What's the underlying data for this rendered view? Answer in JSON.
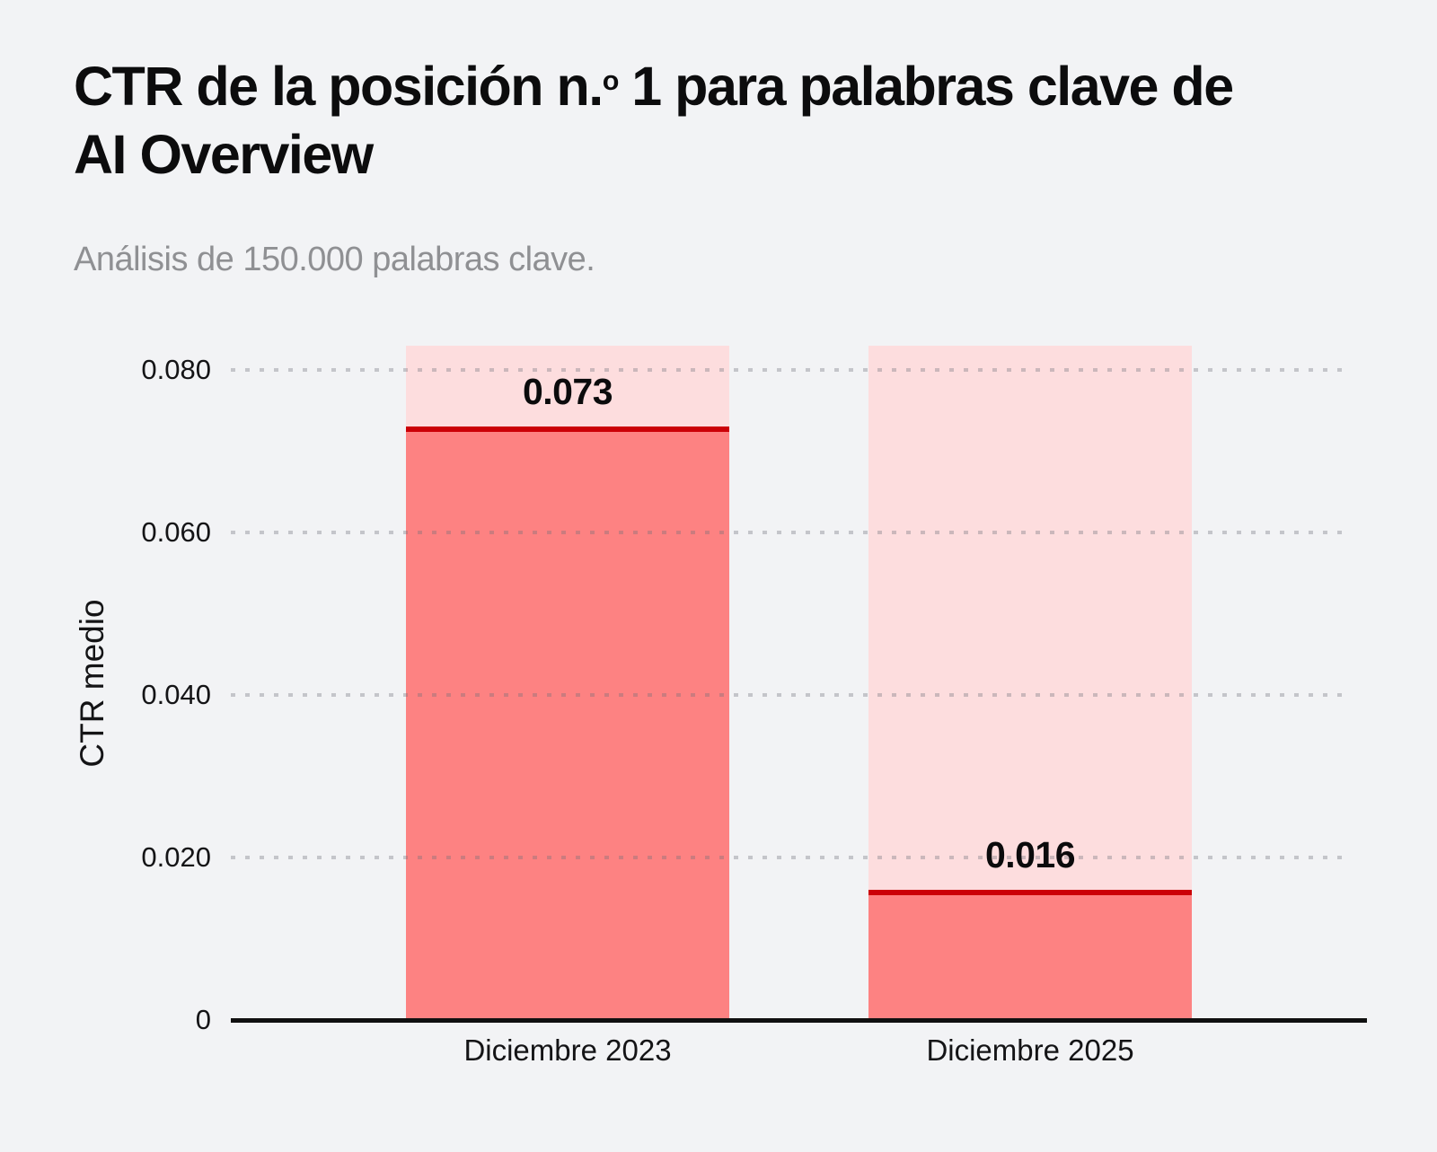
{
  "title": {
    "prefix": "CTR de la posición n.",
    "superscript": "o",
    "suffix": " 1 para palabras clave de AI Overview"
  },
  "subtitle": "Análisis de 150.000 palabras clave.",
  "chart_data": {
    "type": "bar",
    "categories": [
      "Diciembre 2023",
      "Diciembre 2025"
    ],
    "values": [
      0.073,
      0.016
    ],
    "value_labels": [
      "0.073",
      "0.016"
    ],
    "title": "CTR de la posición n.º 1 para palabras clave de AI Overview",
    "subtitle": "Análisis de 150.000 palabras clave.",
    "xlabel": "",
    "ylabel": "CTR medio",
    "yticks": [
      0,
      0.02,
      0.04,
      0.06,
      0.08
    ],
    "ytick_labels": [
      "0",
      "0.020",
      "0.040",
      "0.060",
      "0.080"
    ],
    "ylim": [
      0,
      0.083
    ],
    "background_bar_value": 0.083,
    "grid": "horizontal-dotted",
    "legend": "none",
    "colors": {
      "bar_fill": "#fd8282",
      "bar_track_background": "#fdddde",
      "value_top_line": "#cb0007",
      "page_background": "#f2f3f5",
      "grid_dots": "#d5d6d8",
      "axis_line": "#101010",
      "title_text": "#0c0c0d",
      "subtitle_text": "#8f9093"
    }
  }
}
